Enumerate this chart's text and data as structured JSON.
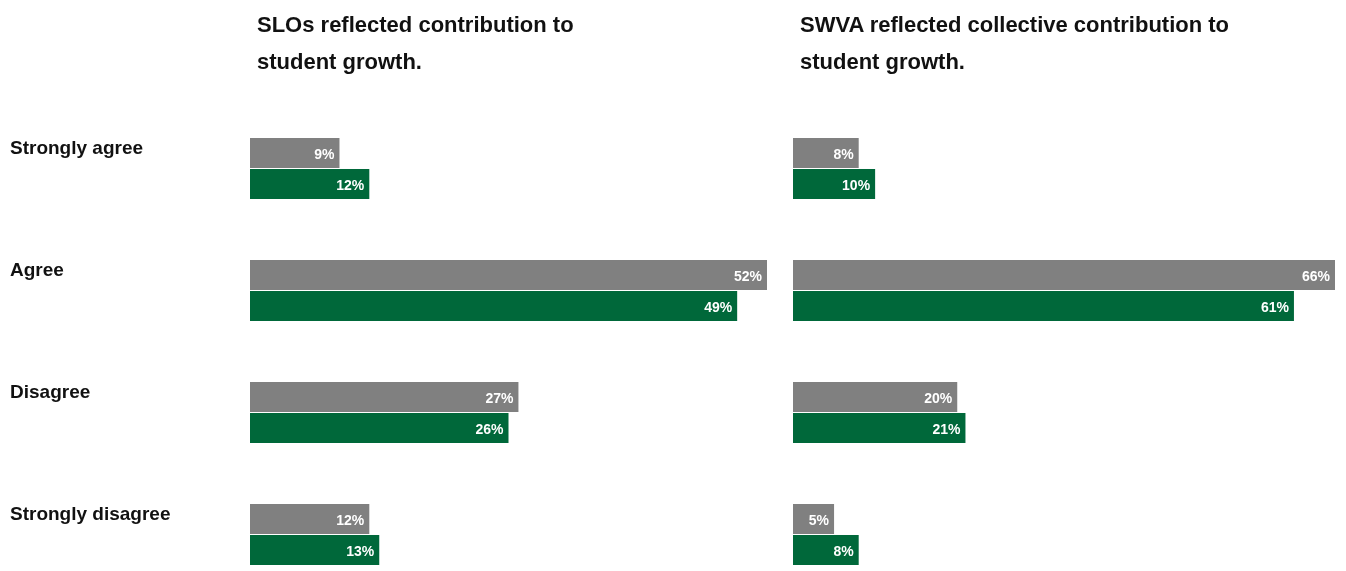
{
  "chart_data": [
    {
      "type": "bar",
      "orientation": "horizontal",
      "title": "SLOs reflected contribution to student growth.",
      "categories": [
        "Strongly agree",
        "Agree",
        "Disagree",
        "Strongly disagree"
      ],
      "series": [
        {
          "color": "#808080",
          "values": [
            9,
            52,
            27,
            12
          ],
          "value_labels": [
            "9%",
            "52%",
            "27%",
            "12%"
          ]
        },
        {
          "color": "#00683a",
          "values": [
            12,
            49,
            26,
            13
          ],
          "value_labels": [
            "12%",
            "49%",
            "26%",
            "13%"
          ]
        }
      ]
    },
    {
      "type": "bar",
      "orientation": "horizontal",
      "title": "SWVA reflected collective contribution to student growth.",
      "categories": [
        null,
        null,
        null,
        null
      ],
      "series": [
        {
          "color": "#808080",
          "values": [
            8,
            66,
            20,
            5
          ],
          "value_labels": [
            "8%",
            "66%",
            "20%",
            "5%"
          ]
        },
        {
          "color": "#00683a",
          "values": [
            10,
            61,
            21,
            8
          ],
          "value_labels": [
            "10%",
            "61%",
            "21%",
            "8%"
          ]
        }
      ]
    }
  ]
}
